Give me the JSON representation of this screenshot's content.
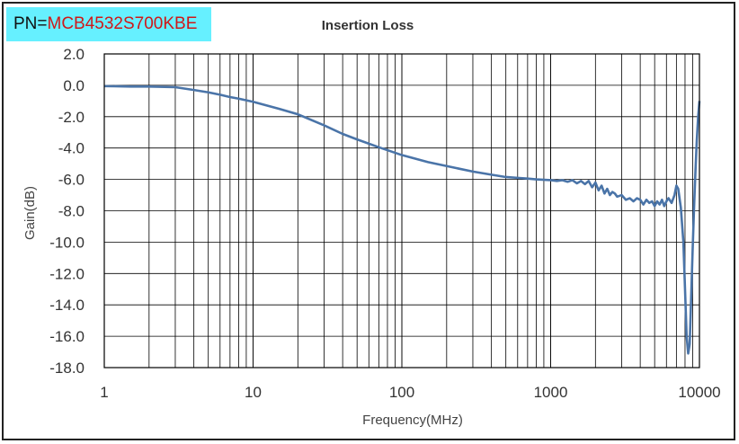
{
  "badge": {
    "prefix": "PN=",
    "part_number": "MCB4532S700KBE",
    "background_color": "#66f0ff",
    "part_number_color": "#d01818"
  },
  "chart_data": {
    "type": "line",
    "title": "Insertion Loss",
    "xlabel": "Frequency(MHz)",
    "ylabel": "Gain(dB)",
    "x_scale": "log",
    "xlim": [
      1,
      10000
    ],
    "ylim": [
      -18,
      2
    ],
    "x_tick_labels": [
      "1",
      "10",
      "100",
      "1000",
      "10000"
    ],
    "y_tick_labels": [
      "2.0",
      "0.0",
      "-2.0",
      "-4.0",
      "-6.0",
      "-8.0",
      "-10.0",
      "-12.0",
      "-14.0",
      "-16.0",
      "-18.0"
    ],
    "grid": true,
    "line_color": "#4a74a8",
    "series": [
      {
        "x": [
          1,
          1.5,
          2,
          3,
          4,
          5,
          6,
          7,
          8,
          10,
          15,
          20,
          30,
          40,
          50,
          70,
          100,
          150,
          200,
          300,
          400,
          500,
          600,
          700,
          800,
          1000,
          1100,
          1200,
          1300,
          1400,
          1500,
          1600,
          1700,
          1800,
          1900,
          2000,
          2100,
          2200,
          2300,
          2400,
          2500,
          2600,
          2700,
          2800,
          3000,
          3200,
          3400,
          3600,
          3800,
          4000,
          4200,
          4400,
          4600,
          4800,
          5000,
          5200,
          5400,
          5600,
          5800,
          6000,
          6200,
          6500,
          6800,
          7000,
          7200,
          7500,
          7800,
          8000,
          8200,
          8400,
          8600,
          8800,
          9000,
          9200,
          9400,
          9600,
          9800,
          10000
        ],
        "y": [
          -0.05,
          -0.08,
          -0.08,
          -0.12,
          -0.3,
          -0.45,
          -0.6,
          -0.75,
          -0.85,
          -1.05,
          -1.5,
          -1.85,
          -2.55,
          -3.1,
          -3.45,
          -3.95,
          -4.45,
          -4.9,
          -5.15,
          -5.5,
          -5.7,
          -5.85,
          -5.9,
          -5.95,
          -6.0,
          -6.05,
          -6.1,
          -6.05,
          -6.15,
          -6.05,
          -6.25,
          -6.1,
          -6.3,
          -6.1,
          -6.5,
          -6.2,
          -6.7,
          -6.4,
          -6.9,
          -6.6,
          -7.0,
          -6.8,
          -6.9,
          -7.1,
          -7.0,
          -7.3,
          -7.2,
          -7.4,
          -7.2,
          -7.3,
          -7.6,
          -7.3,
          -7.5,
          -7.4,
          -7.7,
          -7.4,
          -7.6,
          -7.3,
          -7.7,
          -7.4,
          -7.2,
          -7.5,
          -7.0,
          -6.4,
          -6.6,
          -7.8,
          -10.0,
          -13.0,
          -16.0,
          -17.1,
          -16.5,
          -13.5,
          -10.5,
          -7.8,
          -5.5,
          -3.5,
          -2.0,
          -1.0
        ]
      }
    ]
  }
}
